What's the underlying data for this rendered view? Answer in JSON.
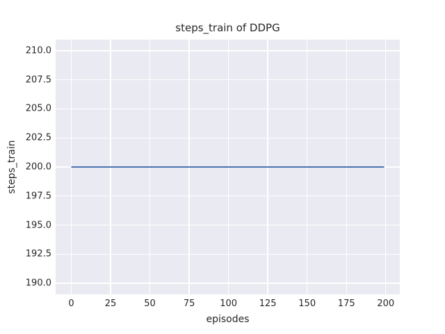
{
  "chart_data": {
    "type": "line",
    "title": "steps_train of DDPG",
    "xlabel": "episodes",
    "ylabel": "steps_train",
    "xlim": [
      -9.95,
      208.95
    ],
    "ylim": [
      189.05,
      210.95
    ],
    "xticks": {
      "values": [
        0,
        25,
        50,
        75,
        100,
        125,
        150,
        175,
        200
      ],
      "labels": [
        "0",
        "25",
        "50",
        "75",
        "100",
        "125",
        "150",
        "175",
        "200"
      ]
    },
    "yticks": {
      "values": [
        210.0,
        207.5,
        205.0,
        202.5,
        200.0,
        197.5,
        195.0,
        192.5,
        190.0
      ],
      "labels": [
        "210.0",
        "207.5",
        "205.0",
        "202.5",
        "200.0",
        "197.5",
        "195.0",
        "192.5",
        "190.0"
      ]
    },
    "grid": "on",
    "legend": "none",
    "plot_bg_color": "#eaeaf2",
    "gridline_color": "#ffffff",
    "text_color": "#262626",
    "series": [
      {
        "name": "steps_train",
        "color": "#4c72b0",
        "line_width": 2,
        "description": "constant value 200 across all episodes",
        "x": [
          0,
          199
        ],
        "y": [
          200,
          200
        ]
      }
    ]
  }
}
